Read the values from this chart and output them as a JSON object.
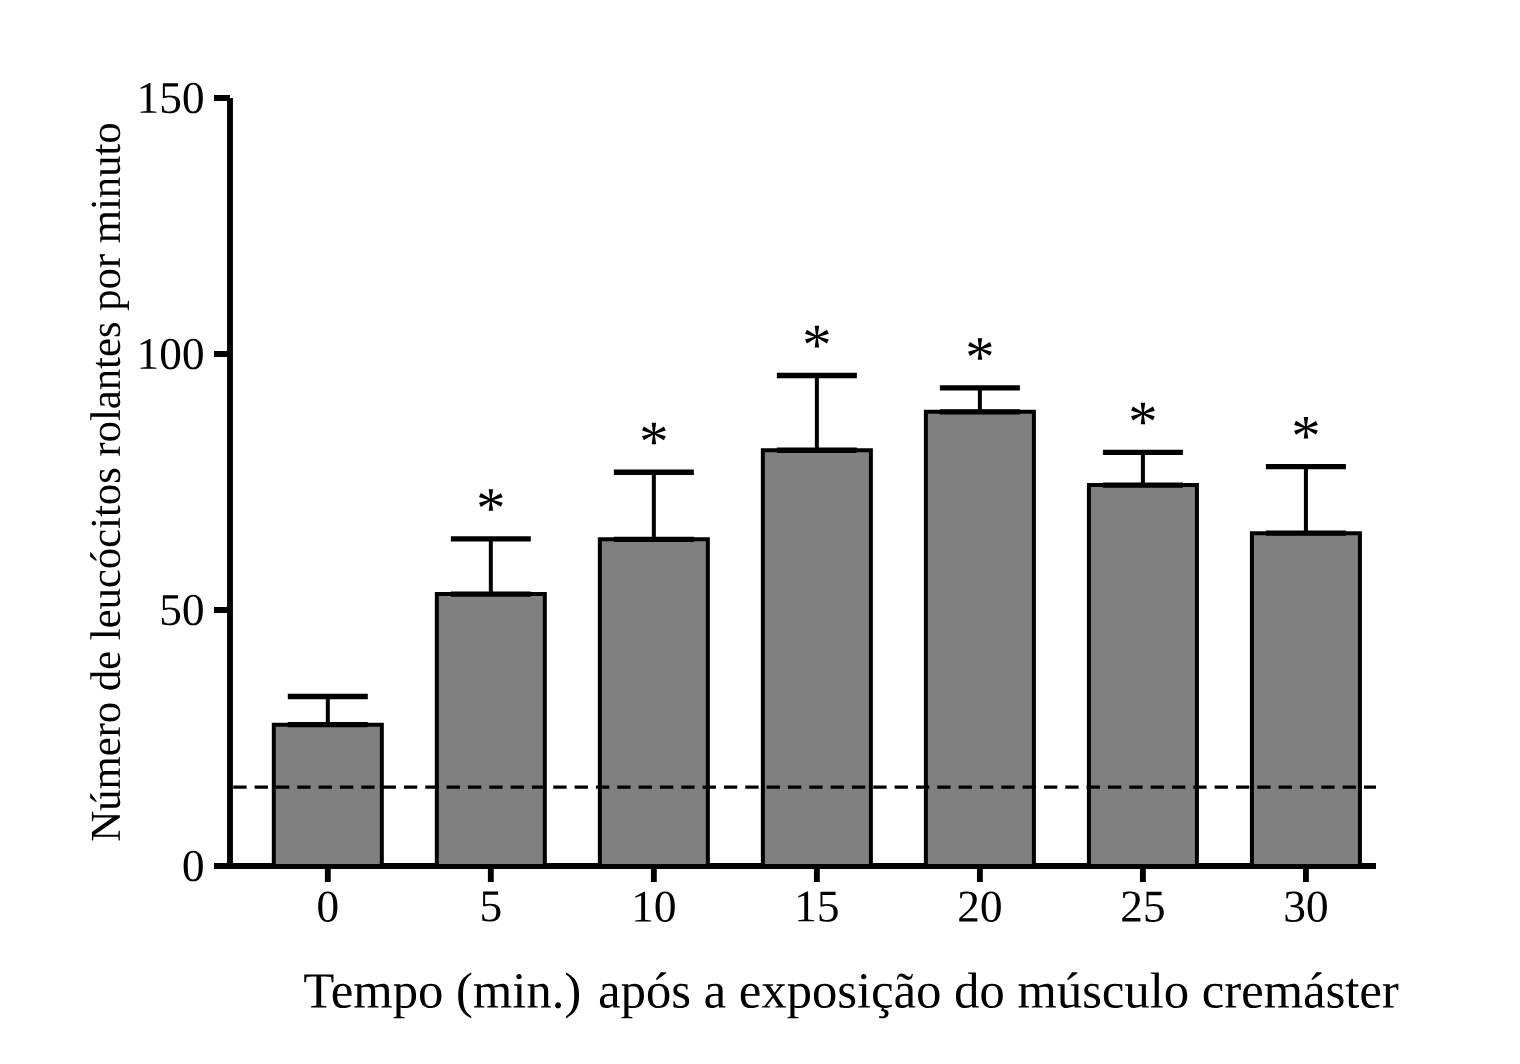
{
  "chart_data": {
    "type": "bar",
    "xlabel": "Tempo (min.) após a exposição do músculo cremáster",
    "ylabel": "Número de leucócitos rolantes por minuto",
    "categories": [
      "0",
      "5",
      "10",
      "15",
      "20",
      "25",
      "30"
    ],
    "values": [
      27.6,
      53.1,
      63.8,
      81.2,
      88.7,
      74.4,
      65.0
    ],
    "errors": [
      [
        27.6,
        33.1
      ],
      [
        53.1,
        63.9
      ],
      [
        63.8,
        76.9
      ],
      [
        81.2,
        95.8
      ],
      [
        88.7,
        93.4
      ],
      [
        74.4,
        80.8
      ],
      [
        65.0,
        78.0
      ]
    ],
    "color": "#808080",
    "ylim": [
      0,
      150
    ],
    "yticks": [
      0,
      50,
      100,
      150
    ],
    "ref_lines": [
      {
        "axis": "y",
        "value": 15.4,
        "line_style": "dashed"
      }
    ],
    "annotations": [
      "*",
      "*",
      "*",
      "*",
      "*",
      "*"
    ]
  }
}
